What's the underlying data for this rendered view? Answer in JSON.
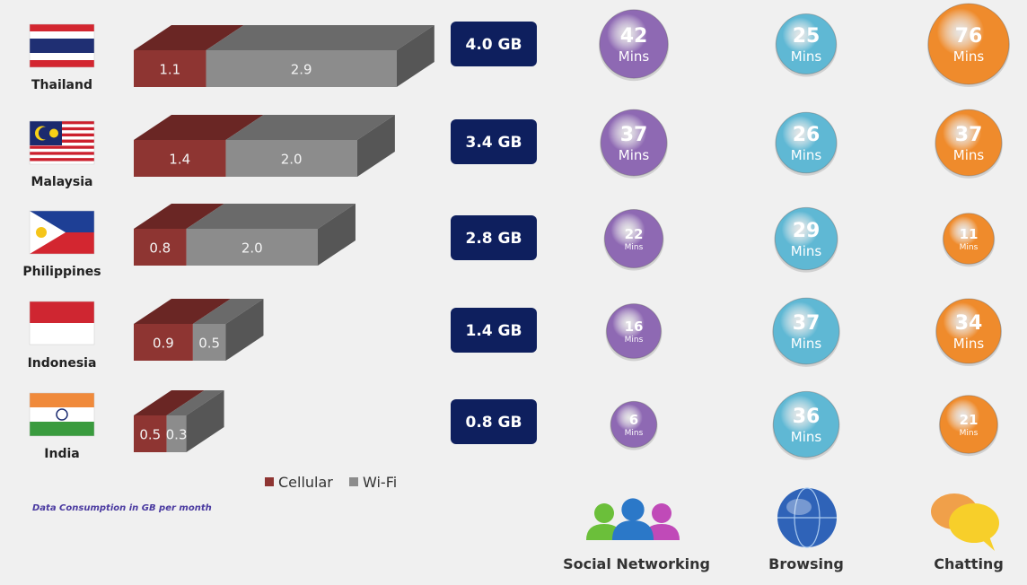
{
  "chart_data": {
    "type": "bar",
    "stacked": true,
    "categories": [
      "Thailand",
      "Malaysia",
      "Philippines",
      "Indonesia",
      "India"
    ],
    "series": [
      {
        "name": "Cellular",
        "values": [
          1.1,
          1.4,
          0.8,
          0.9,
          0.5
        ],
        "color": "#8e3532"
      },
      {
        "name": "Wi-Fi",
        "values": [
          2.9,
          2.0,
          2.0,
          0.5,
          0.3
        ],
        "color": "#8c8c8c"
      }
    ],
    "totals": [
      "4.0 GB",
      "3.4 GB",
      "2.8 GB",
      "1.4 GB",
      "0.8 GB"
    ],
    "note": "Data Consumption in GB per month",
    "legend": [
      "Cellular",
      "Wi-Fi"
    ],
    "activity_categories": [
      "Social Networking",
      "Browsing",
      "Chatting"
    ],
    "activity_unit": "Mins",
    "activity_minutes": {
      "Social Networking": [
        42,
        37,
        22,
        16,
        6
      ],
      "Browsing": [
        25,
        26,
        29,
        37,
        36
      ],
      "Chatting": [
        76,
        37,
        11,
        34,
        21
      ]
    },
    "activity_colors": {
      "Social Networking": "#8e69b3",
      "Browsing": "#5fb8d4",
      "Chatting": "#ef8b2c"
    }
  }
}
